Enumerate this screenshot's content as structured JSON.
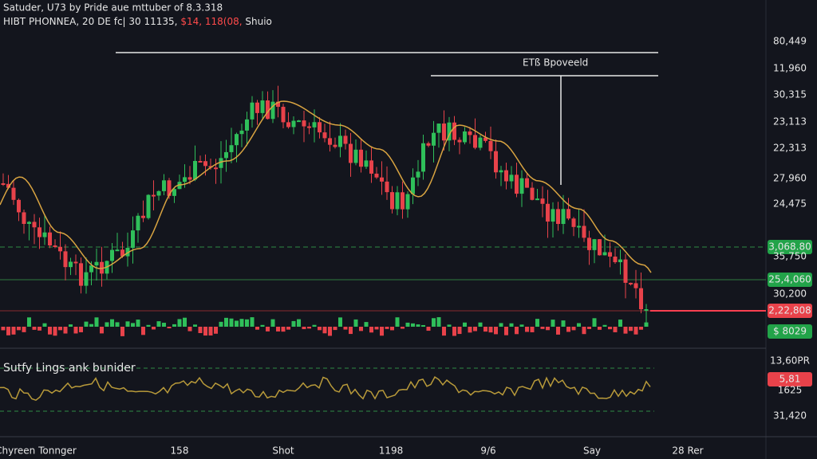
{
  "header": {
    "line1": "Satuder, U73 by Pride aue mttuber of 8.3.318",
    "line2": {
      "lead": "HIBT PHONNEA, 20 DE fc| 30 11135,",
      "highlight": "$14, 118(08,",
      "tail": "Shuio"
    }
  },
  "annotation": "ETß Bpoveeld",
  "price_axis": [
    {
      "text": "80,449",
      "tag": "none"
    },
    {
      "text": "11,960",
      "tag": "none"
    },
    {
      "text": "30,315",
      "tag": "none"
    },
    {
      "text": "23,113",
      "tag": "none"
    },
    {
      "text": "22,313",
      "tag": "none"
    },
    {
      "text": "27,960",
      "tag": "none"
    },
    {
      "text": "24,475",
      "tag": "none"
    },
    {
      "text": "3,068.80",
      "tag": "green"
    },
    {
      "text": "35,750",
      "tag": "none"
    },
    {
      "text": "25,4,060",
      "tag": "green"
    },
    {
      "text": "30,200",
      "tag": "none"
    },
    {
      "text": "2,22,808",
      "tag": "red"
    },
    {
      "text": "$ 8029",
      "tag": "green"
    }
  ],
  "indicator": {
    "title": "Sutfy Lings ank bunider",
    "axis": [
      {
        "text": "13,60PR",
        "tag": "none"
      },
      {
        "text": "5,81",
        "tag": "red"
      },
      {
        "text": "1625",
        "tag": "none"
      },
      {
        "text": "31,420",
        "tag": "none"
      }
    ]
  },
  "time_axis": [
    "Chyreen Tonnger",
    "158",
    "Shot",
    "1198",
    "9/6",
    "Say",
    "28 Rer"
  ]
}
